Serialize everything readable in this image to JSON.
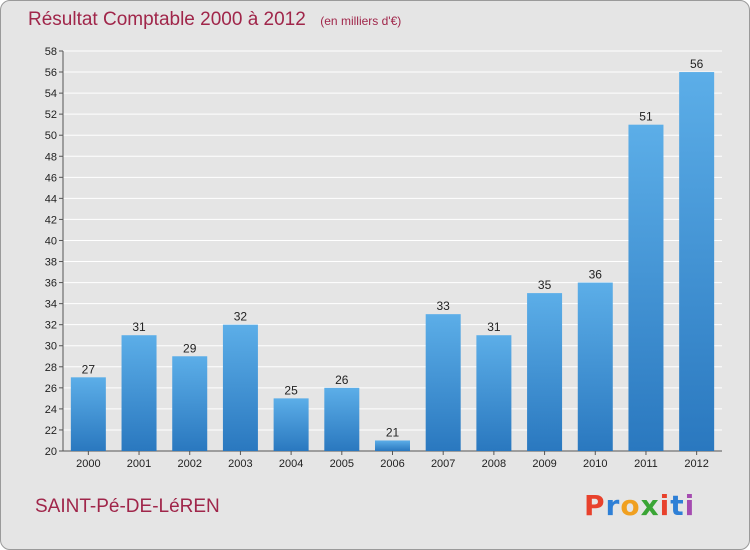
{
  "chart_data": {
    "type": "bar",
    "title": "Résultat Comptable 2000 à 2012",
    "subtitle": "(en milliers d'€)",
    "categories": [
      "2000",
      "2001",
      "2002",
      "2003",
      "2004",
      "2005",
      "2006",
      "2007",
      "2008",
      "2009",
      "2010",
      "2011",
      "2012"
    ],
    "values": [
      27,
      31,
      29,
      32,
      25,
      26,
      21,
      33,
      31,
      35,
      36,
      51,
      56
    ],
    "ylim": [
      20,
      58
    ],
    "yticks": [
      20,
      22,
      24,
      26,
      28,
      30,
      32,
      34,
      36,
      38,
      40,
      42,
      44,
      46,
      48,
      50,
      52,
      54,
      56,
      58
    ],
    "xlabel": "",
    "ylabel": "",
    "grid": true,
    "bar_color": "#3a8fd6"
  },
  "footer": {
    "commune": "SAINT-Pé-DE-LéREN",
    "logo_text": "Proxiti",
    "logo_colors": [
      "#e8412c",
      "#2e7fd6",
      "#f0a020",
      "#3aa535",
      "#e8412c",
      "#2e7fd6",
      "#a54bb0"
    ]
  },
  "colors": {
    "title": "#a0264a",
    "background": "#e5e5e5"
  }
}
